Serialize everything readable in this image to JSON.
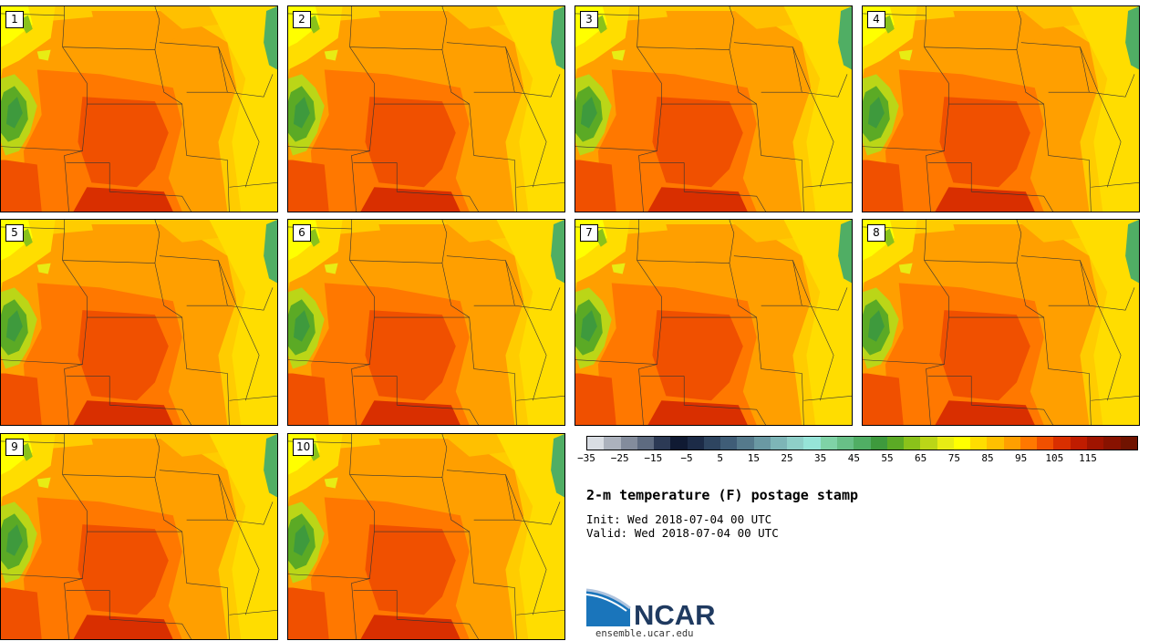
{
  "figure": {
    "title": "2-m temperature (F) postage stamp",
    "init_label": "Init:",
    "init_time": "Wed 2018-07-04 00 UTC",
    "valid_label": "Valid:",
    "valid_time": "Wed 2018-07-04 00 UTC"
  },
  "members": [
    "1",
    "2",
    "3",
    "4",
    "5",
    "6",
    "7",
    "8",
    "9",
    "10"
  ],
  "colorbar": {
    "colors": [
      "#D9DDE3",
      "#ACB2BD",
      "#838C9C",
      "#5E6B80",
      "#2C3A55",
      "#101A33",
      "#1C2B47",
      "#2E4560",
      "#3F5D77",
      "#557A8C",
      "#6A99A3",
      "#7DB5B7",
      "#8ECFC8",
      "#96E4D8",
      "#7FD3A6",
      "#68C087",
      "#50AE64",
      "#3E9A3D",
      "#5BAA25",
      "#8AC21A",
      "#BBD617",
      "#E8EC14",
      "#FFFF00",
      "#FFDD00",
      "#FFC000",
      "#FF9F00",
      "#FF7800",
      "#F05000",
      "#D92F00",
      "#C01C00",
      "#A01400",
      "#881200",
      "#701300"
    ],
    "tick_labels": [
      "-35",
      "-25",
      "-15",
      "-5",
      "5",
      "15",
      "25",
      "35",
      "45",
      "55",
      "65",
      "75",
      "85",
      "95",
      "105",
      "115"
    ],
    "range": [
      -35,
      130
    ]
  },
  "branding": {
    "logo_text": "NCAR",
    "url": "ensemble.ucar.edu"
  }
}
